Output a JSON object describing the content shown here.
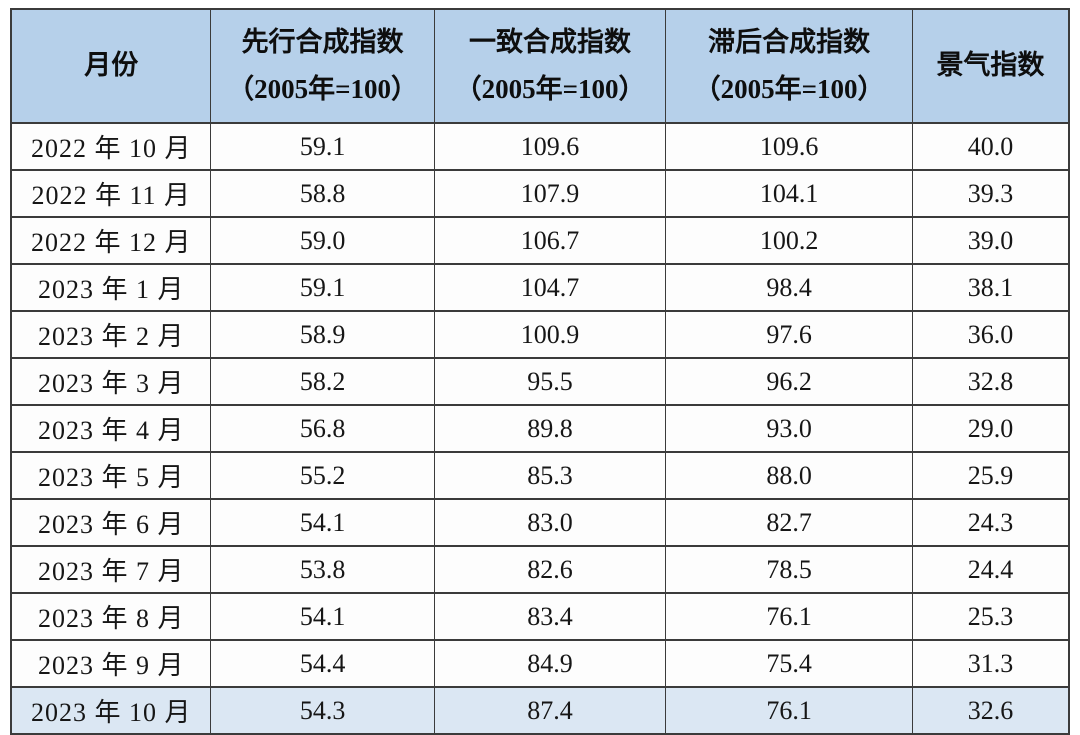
{
  "accent_colors": {
    "header_bg": "#b6d0ea",
    "highlight_row_bg": "#dbe7f3",
    "border": "#3b3b3b",
    "text": "#161616"
  },
  "table": {
    "header": {
      "month": "月份",
      "leading_line1": "先行合成指数",
      "leading_line2": "（2005年=100）",
      "coincident_line1": "一致合成指数",
      "coincident_line2": "（2005年=100）",
      "lagging_line1": "滞后合成指数",
      "lagging_line2": "（2005年=100）",
      "prosperity": "景气指数"
    },
    "rows": [
      {
        "month": "2022 年 10 月",
        "leading": "59.1",
        "coincident": "109.6",
        "lagging": "109.6",
        "prosperity": "40.0"
      },
      {
        "month": "2022 年 11 月",
        "leading": "58.8",
        "coincident": "107.9",
        "lagging": "104.1",
        "prosperity": "39.3"
      },
      {
        "month": "2022 年 12 月",
        "leading": "59.0",
        "coincident": "106.7",
        "lagging": "100.2",
        "prosperity": "39.0"
      },
      {
        "month": "2023 年 1 月",
        "leading": "59.1",
        "coincident": "104.7",
        "lagging": "98.4",
        "prosperity": "38.1"
      },
      {
        "month": "2023 年 2 月",
        "leading": "58.9",
        "coincident": "100.9",
        "lagging": "97.6",
        "prosperity": "36.0"
      },
      {
        "month": "2023 年 3 月",
        "leading": "58.2",
        "coincident": "95.5",
        "lagging": "96.2",
        "prosperity": "32.8"
      },
      {
        "month": "2023 年 4 月",
        "leading": "56.8",
        "coincident": "89.8",
        "lagging": "93.0",
        "prosperity": "29.0"
      },
      {
        "month": "2023 年 5 月",
        "leading": "55.2",
        "coincident": "85.3",
        "lagging": "88.0",
        "prosperity": "25.9"
      },
      {
        "month": "2023 年 6 月",
        "leading": "54.1",
        "coincident": "83.0",
        "lagging": "82.7",
        "prosperity": "24.3"
      },
      {
        "month": "2023 年 7 月",
        "leading": "53.8",
        "coincident": "82.6",
        "lagging": "78.5",
        "prosperity": "24.4"
      },
      {
        "month": "2023 年 8 月",
        "leading": "54.1",
        "coincident": "83.4",
        "lagging": "76.1",
        "prosperity": "25.3"
      },
      {
        "month": "2023 年 9 月",
        "leading": "54.4",
        "coincident": "84.9",
        "lagging": "75.4",
        "prosperity": "31.3"
      },
      {
        "month": "2023 年 10 月",
        "leading": "54.3",
        "coincident": "87.4",
        "lagging": "76.1",
        "prosperity": "32.6"
      }
    ]
  },
  "chart_data": {
    "type": "table",
    "title": "",
    "columns": [
      "月份",
      "先行合成指数（2005年=100）",
      "一致合成指数（2005年=100）",
      "滞后合成指数（2005年=100）",
      "景气指数"
    ],
    "rows": [
      [
        "2022年10月",
        59.1,
        109.6,
        109.6,
        40.0
      ],
      [
        "2022年11月",
        58.8,
        107.9,
        104.1,
        39.3
      ],
      [
        "2022年12月",
        59.0,
        106.7,
        100.2,
        39.0
      ],
      [
        "2023年1月",
        59.1,
        104.7,
        98.4,
        38.1
      ],
      [
        "2023年2月",
        58.9,
        100.9,
        97.6,
        36.0
      ],
      [
        "2023年3月",
        58.2,
        95.5,
        96.2,
        32.8
      ],
      [
        "2023年4月",
        56.8,
        89.8,
        93.0,
        29.0
      ],
      [
        "2023年5月",
        55.2,
        85.3,
        88.0,
        25.9
      ],
      [
        "2023年6月",
        54.1,
        83.0,
        82.7,
        24.3
      ],
      [
        "2023年7月",
        53.8,
        82.6,
        78.5,
        24.4
      ],
      [
        "2023年8月",
        54.1,
        83.4,
        76.1,
        25.3
      ],
      [
        "2023年9月",
        54.4,
        84.9,
        75.4,
        31.3
      ],
      [
        "2023年10月",
        54.3,
        87.4,
        76.1,
        32.6
      ]
    ],
    "highlighted_row": "2023年10月",
    "layout": {
      "header_fill": "#b6d0ea",
      "highlight_fill": "#dbe7f3",
      "grid": "on"
    }
  }
}
